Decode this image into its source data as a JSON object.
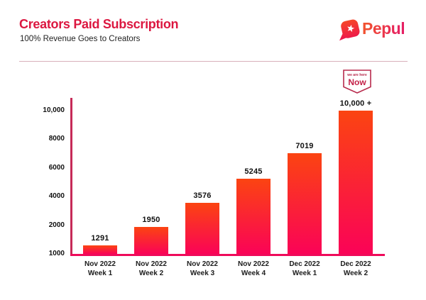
{
  "header": {
    "title": "Creators Paid Subscription",
    "subtitle": "100% Revenue Goes to Creators",
    "title_color": "#dc1740",
    "divider_color": "#d9b0ba"
  },
  "logo": {
    "text": "Pepul",
    "icon": "pepul-star-bubble-icon",
    "gradient_from": "#f64926",
    "gradient_to": "#ec1150"
  },
  "now_badge": {
    "line1": "we are here",
    "line2": "Now",
    "border_color": "#b82b4d",
    "text_color": "#c42148"
  },
  "chart_data": {
    "type": "bar",
    "title": "Creators Paid Subscription",
    "xlabel": "",
    "ylabel": "",
    "grid": false,
    "legend": null,
    "ylim": [
      1000,
      10000
    ],
    "y_ticks": [
      1000,
      2000,
      4000,
      6000,
      8000,
      10000
    ],
    "y_tick_labels": [
      "1000",
      "2000",
      "4000",
      "6000",
      "8000",
      "10,000"
    ],
    "categories": [
      {
        "line1": "Nov 2022",
        "line2": "Week 1"
      },
      {
        "line1": "Nov 2022",
        "line2": "Week 2"
      },
      {
        "line1": "Nov 2022",
        "line2": "Week 3"
      },
      {
        "line1": "Nov 2022",
        "line2": "Week 4"
      },
      {
        "line1": "Dec 2022",
        "line2": "Week 1"
      },
      {
        "line1": "Dec 2022",
        "line2": "Week 2"
      }
    ],
    "values": [
      1291,
      1950,
      3576,
      5245,
      7019,
      10000
    ],
    "value_labels": [
      "1291",
      "1950",
      "3576",
      "5245",
      "7019",
      "10,000 +"
    ],
    "bar_gradient_top": "#fb4411",
    "bar_gradient_bottom": "#fa0357",
    "axis_color_y": "#c62b58",
    "axis_color_x": "#ef0a5a",
    "tick_label_color": "#111111",
    "note": "y-axis ticks are evenly spaced despite non-linear values; bars rise from the 1000 baseline"
  }
}
